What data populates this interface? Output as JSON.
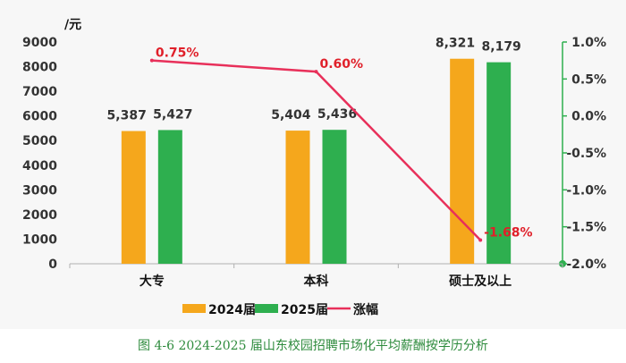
{
  "chart_data": {
    "type": "bar+line",
    "y_unit": "/元",
    "categories": [
      "大专",
      "本科",
      "硕士及以上"
    ],
    "series": [
      {
        "name": "2024届",
        "type": "bar",
        "color": "#f5a71c",
        "values": [
          5387,
          5404,
          8321
        ],
        "labels": [
          "5,387",
          "5,404",
          "8,321"
        ]
      },
      {
        "name": "2025届",
        "type": "bar",
        "color": "#2eaf4f",
        "values": [
          5427,
          5436,
          8179
        ],
        "labels": [
          "5,427",
          "5,436",
          "8,179"
        ]
      },
      {
        "name": "涨幅",
        "type": "line",
        "axis": "right",
        "color": "#e8305a",
        "values": [
          0.75,
          0.6,
          -1.68
        ],
        "labels": [
          "0.75%",
          "0.60%",
          "-1.68%"
        ]
      }
    ],
    "left_axis": {
      "min": 0,
      "max": 9000,
      "ticks": [
        "0",
        "1000",
        "2000",
        "3000",
        "4000",
        "5000",
        "6000",
        "7000",
        "8000",
        "9000"
      ]
    },
    "right_axis": {
      "min": -2.0,
      "max": 1.0,
      "ticks": [
        "1.0%",
        "0.5%",
        "0.0%",
        "-0.5%",
        "-1.0%",
        "-1.5%",
        "-2.0%"
      ],
      "tick_values": [
        1.0,
        0.5,
        0.0,
        -0.5,
        -1.0,
        -1.5,
        -2.0
      ],
      "color": "#2eaf4f"
    },
    "legend": [
      "2024届",
      "2025届",
      "涨幅"
    ],
    "legend_position": "bottom"
  },
  "caption": "图 4-6 2024-2025 届山东校园招聘市场化平均薪酬按学历分析"
}
